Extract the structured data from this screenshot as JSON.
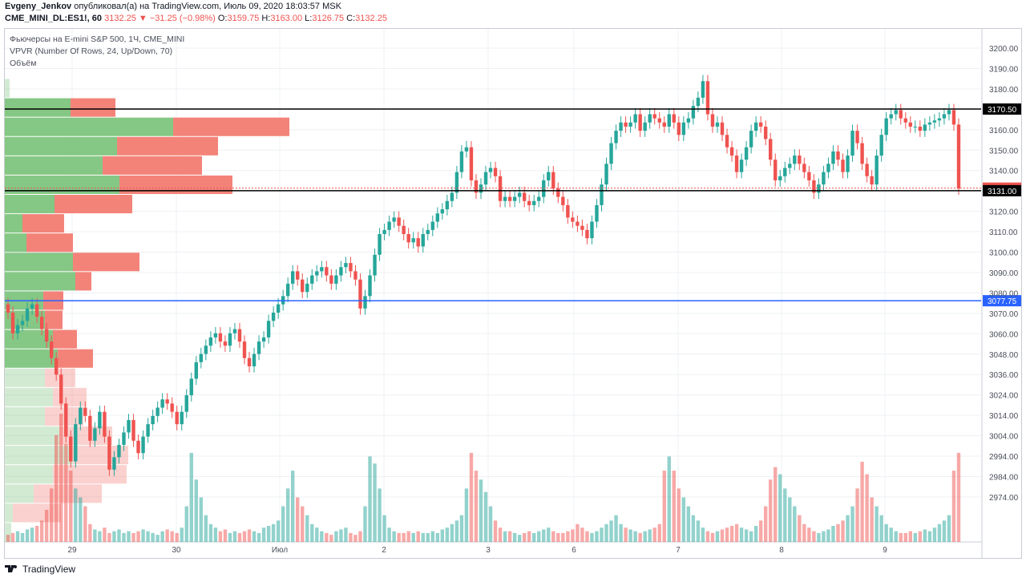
{
  "header": {
    "author": "Evgeny_Jenkov",
    "published_text": "опубликовал(а) на TradingView.com, Июль 09, 2020 18:03:57 MSK",
    "symbol": "CME_MINI_DL:ES1!, 60",
    "last": "3132.25",
    "change": "▼ −31.25 (−0.98%)",
    "o_label": "O:",
    "o": "3159.75",
    "h_label": "H:",
    "h": "3163.00",
    "l_label": "L:",
    "l": "3126.75",
    "c_label": "C:",
    "c": "3132.25"
  },
  "legend": {
    "line1": "Фьючерсы на E-mini S&P 500, 1Ч, CME_MINI",
    "line2": "VPVR (Number Of Rows, 24, Up/Down, 70)",
    "line3": "Объём"
  },
  "footer": {
    "brand": "TradingView"
  },
  "colors": {
    "up": "#26a69a",
    "down": "#ef5350",
    "vp_up": "#7ec47e",
    "vp_down": "#f27c72",
    "hline": "#000000",
    "blueline": "#2962ff"
  },
  "chart_data": {
    "type": "candlestick",
    "ylim": [
      2964,
      3206
    ],
    "yticks": [
      "3200.00",
      "3190.00",
      "3180.00",
      "3170.00",
      "3160.00",
      "3150.00",
      "3140.00",
      "3130.00",
      "3120.00",
      "3110.00",
      "3100.00",
      "3090.00",
      "3080.00",
      "3070.00",
      "3060.00",
      "3048.00",
      "3036.00",
      "3024.00",
      "3014.00",
      "3004.00",
      "2994.00",
      "2984.00",
      "2974.00"
    ],
    "xticks": [
      "29",
      "30",
      "Июл",
      "2",
      "3",
      "6",
      "7",
      "8",
      "9"
    ],
    "price_labels": [
      {
        "value": 3170.5,
        "text": "3170.50",
        "kind": "line"
      },
      {
        "value": 3132.25,
        "text": "3132.25",
        "kind": "last"
      },
      {
        "value": 3131.0,
        "text": "3131.00",
        "kind": "line"
      },
      {
        "value": 3077.75,
        "text": "3077.75",
        "kind": "blue"
      }
    ],
    "close": [
      3072,
      3062,
      3066,
      3068,
      3074,
      3076,
      3070,
      3064,
      3058,
      3050,
      3042,
      3028,
      3012,
      3000,
      3018,
      3026,
      3022,
      3010,
      3016,
      3024,
      3012,
      2996,
      3002,
      3008,
      3014,
      3020,
      3010,
      3004,
      3012,
      3018,
      3022,
      3026,
      3030,
      3028,
      3024,
      3018,
      3024,
      3032,
      3040,
      3048,
      3052,
      3056,
      3060,
      3062,
      3058,
      3056,
      3062,
      3064,
      3058,
      3050,
      3046,
      3052,
      3058,
      3060,
      3068,
      3072,
      3076,
      3080,
      3086,
      3092,
      3088,
      3082,
      3086,
      3090,
      3092,
      3094,
      3090,
      3086,
      3090,
      3094,
      3096,
      3092,
      3088,
      3074,
      3080,
      3090,
      3100,
      3110,
      3112,
      3116,
      3118,
      3114,
      3110,
      3106,
      3108,
      3104,
      3110,
      3112,
      3116,
      3120,
      3122,
      3126,
      3130,
      3140,
      3150,
      3152,
      3136,
      3130,
      3134,
      3140,
      3142,
      3138,
      3126,
      3128,
      3126,
      3128,
      3130,
      3126,
      3124,
      3126,
      3128,
      3136,
      3140,
      3132,
      3128,
      3124,
      3118,
      3116,
      3114,
      3112,
      3108,
      3116,
      3124,
      3134,
      3144,
      3154,
      3160,
      3164,
      3162,
      3164,
      3168,
      3160,
      3164,
      3168,
      3166,
      3164,
      3162,
      3168,
      3164,
      3158,
      3164,
      3166,
      3172,
      3176,
      3184,
      3168,
      3162,
      3164,
      3158,
      3152,
      3148,
      3140,
      3146,
      3152,
      3160,
      3164,
      3162,
      3156,
      3146,
      3136,
      3138,
      3142,
      3144,
      3148,
      3144,
      3140,
      3136,
      3130,
      3134,
      3140,
      3144,
      3150,
      3146,
      3140,
      3148,
      3160,
      3154,
      3144,
      3138,
      3134,
      3148,
      3158,
      3166,
      3168,
      3170,
      3166,
      3164,
      3162,
      3162,
      3160,
      3163,
      3164,
      3165,
      3166,
      3168,
      3170,
      3163,
      3132
    ],
    "volume": [
      4,
      5,
      6,
      5,
      7,
      8,
      9,
      12,
      18,
      30,
      60,
      72,
      55,
      40,
      30,
      25,
      20,
      10,
      7,
      6,
      8,
      5,
      6,
      7,
      5,
      6,
      5,
      6,
      7,
      6,
      5,
      4,
      6,
      7,
      6,
      5,
      8,
      20,
      50,
      35,
      25,
      15,
      10,
      8,
      6,
      7,
      5,
      6,
      5,
      6,
      7,
      6,
      5,
      8,
      9,
      10,
      12,
      20,
      30,
      40,
      25,
      20,
      15,
      10,
      8,
      6,
      5,
      4,
      6,
      7,
      8,
      5,
      4,
      6,
      20,
      48,
      44,
      30,
      15,
      8,
      6,
      5,
      5,
      6,
      5,
      6,
      5,
      5,
      6,
      5,
      7,
      8,
      10,
      12,
      15,
      30,
      50,
      40,
      35,
      28,
      20,
      12,
      8,
      6,
      6,
      5,
      4,
      5,
      6,
      5,
      6,
      7,
      8,
      6,
      5,
      5,
      6,
      7,
      10,
      8,
      6,
      5,
      6,
      8,
      10,
      12,
      15,
      10,
      8,
      7,
      6,
      5,
      6,
      7,
      8,
      10,
      40,
      48,
      40,
      30,
      25,
      20,
      15,
      12,
      8,
      6,
      5,
      6,
      7,
      8,
      9,
      10,
      8,
      7,
      6,
      9,
      12,
      20,
      35,
      42,
      38,
      30,
      25,
      20,
      15,
      10,
      8,
      6,
      5,
      6,
      7,
      9,
      10,
      12,
      15,
      20,
      30,
      45,
      38,
      25,
      20,
      15,
      10,
      8,
      6,
      5,
      5,
      6,
      5,
      6,
      7,
      6,
      8,
      10,
      12,
      15,
      40,
      50
    ],
    "volume_profile": [
      {
        "up": 6,
        "down": 0,
        "visible": false
      },
      {
        "up": 82,
        "down": 56,
        "visible": true
      },
      {
        "up": 210,
        "down": 145,
        "visible": true
      },
      {
        "up": 140,
        "down": 126,
        "visible": true
      },
      {
        "up": 122,
        "down": 124,
        "visible": true
      },
      {
        "up": 143,
        "down": 141,
        "visible": true
      },
      {
        "up": 62,
        "down": 97,
        "visible": true
      },
      {
        "up": 22,
        "down": 52,
        "visible": true
      },
      {
        "up": 27,
        "down": 58,
        "visible": true
      },
      {
        "up": 85,
        "down": 83,
        "visible": true
      },
      {
        "up": 88,
        "down": 20,
        "visible": true
      },
      {
        "up": 48,
        "down": 25,
        "visible": true
      },
      {
        "up": 50,
        "down": 22,
        "visible": true
      },
      {
        "up": 60,
        "down": 30,
        "visible": true
      },
      {
        "up": 66,
        "down": 44,
        "visible": true
      },
      {
        "up": 50,
        "down": 38,
        "visible": false
      },
      {
        "up": 60,
        "down": 42,
        "visible": false
      },
      {
        "up": 50,
        "down": 48,
        "visible": false
      },
      {
        "up": 68,
        "down": 66,
        "visible": false
      },
      {
        "up": 85,
        "down": 69,
        "visible": false
      },
      {
        "up": 60,
        "down": 92,
        "visible": false
      },
      {
        "up": 36,
        "down": 85,
        "visible": false
      },
      {
        "up": 10,
        "down": 60,
        "visible": false
      },
      {
        "up": 8,
        "down": 0,
        "visible": false
      }
    ]
  }
}
